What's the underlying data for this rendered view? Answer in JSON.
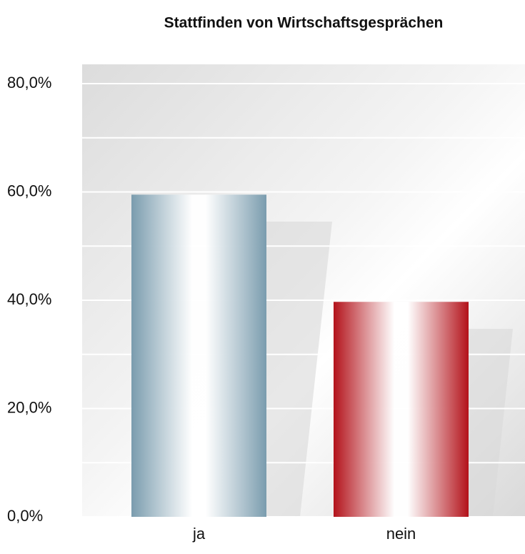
{
  "chart_data": {
    "type": "bar",
    "title": "Stattfinden von Wirtschaftsgesprächen",
    "categories": [
      "ja",
      "nein"
    ],
    "values": [
      59.5,
      39.7
    ],
    "colors": [
      "#7a9cae",
      "#b3121a"
    ],
    "ylim": [
      0,
      80
    ],
    "yticks": [
      {
        "value": 0,
        "label": "0,0%"
      },
      {
        "value": 20,
        "label": "20,0%"
      },
      {
        "value": 40,
        "label": "40,0%"
      },
      {
        "value": 60,
        "label": "60,0%"
      },
      {
        "value": 80,
        "label": "80,0%"
      }
    ],
    "minor_yticks": [
      10,
      30,
      50,
      70
    ],
    "grid": true
  }
}
